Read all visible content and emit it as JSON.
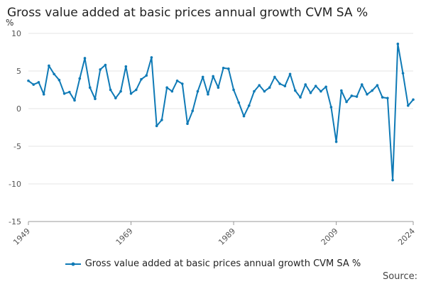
{
  "title": "Gross value added at basic prices annual growth CVM SA %",
  "source_label": "Source:",
  "colors": {
    "series": "#0f7ab6",
    "grid": "#e6e6e6",
    "axis": "#999999"
  },
  "chart_data": {
    "type": "line",
    "title": "Gross value added at basic prices annual growth CVM SA %",
    "ylabel": "%",
    "ylim": [
      -15,
      10
    ],
    "yticks": [
      -15,
      -10,
      -5,
      0,
      5,
      10
    ],
    "xlim": [
      1949,
      2024
    ],
    "xticks": [
      1949,
      1969,
      1989,
      2009,
      2024
    ],
    "grid": true,
    "legend_position": "bottom",
    "series": [
      {
        "name": "Gross value added at basic prices annual growth CVM SA %",
        "x": [
          1949,
          1950,
          1951,
          1952,
          1953,
          1954,
          1955,
          1956,
          1957,
          1958,
          1959,
          1960,
          1961,
          1962,
          1963,
          1964,
          1965,
          1966,
          1967,
          1968,
          1969,
          1970,
          1971,
          1972,
          1973,
          1974,
          1975,
          1976,
          1977,
          1978,
          1979,
          1980,
          1981,
          1982,
          1983,
          1984,
          1985,
          1986,
          1987,
          1988,
          1989,
          1990,
          1991,
          1992,
          1993,
          1994,
          1995,
          1996,
          1997,
          1998,
          1999,
          2000,
          2001,
          2002,
          2003,
          2004,
          2005,
          2006,
          2007,
          2008,
          2009,
          2010,
          2011,
          2012,
          2013,
          2014,
          2015,
          2016,
          2017,
          2018,
          2019,
          2020,
          2021,
          2022,
          2023,
          2024
        ],
        "y": [
          3.7,
          3.2,
          3.5,
          1.9,
          5.7,
          4.6,
          3.8,
          2.0,
          2.2,
          1.1,
          4.0,
          6.7,
          2.8,
          1.3,
          5.2,
          5.8,
          2.5,
          1.4,
          2.3,
          5.6,
          2.0,
          2.5,
          3.9,
          4.4,
          6.8,
          -2.3,
          -1.5,
          2.8,
          2.3,
          3.7,
          3.3,
          -2.0,
          -0.3,
          2.3,
          4.2,
          1.9,
          4.3,
          2.8,
          5.4,
          5.3,
          2.5,
          0.8,
          -1.0,
          0.4,
          2.3,
          3.1,
          2.3,
          2.8,
          4.2,
          3.3,
          3.0,
          4.6,
          2.4,
          1.5,
          3.2,
          2.1,
          3.0,
          2.3,
          2.9,
          0.2,
          -4.4,
          2.4,
          0.9,
          1.7,
          1.6,
          3.2,
          1.9,
          2.4,
          3.1,
          1.5,
          1.4,
          -9.5,
          8.6,
          4.7,
          0.4,
          1.2
        ]
      }
    ]
  }
}
